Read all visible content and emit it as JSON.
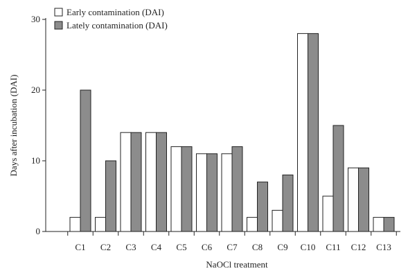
{
  "chart_data": {
    "type": "bar",
    "title": "",
    "xlabel": "NaOCl treatment",
    "ylabel": "Days after incubation (DAI)",
    "ylim": [
      0,
      30
    ],
    "yticks": [
      0,
      10,
      20,
      30
    ],
    "grid": false,
    "legend_position": "top-left",
    "categories": [
      "C1",
      "C2",
      "C3",
      "C4",
      "C5",
      "C6",
      "C7",
      "C8",
      "C9",
      "C10",
      "C11",
      "C12",
      "C13"
    ],
    "series": [
      {
        "name": "Early contamination (DAI)",
        "color": "#ffffff",
        "values": [
          2,
          2,
          14,
          14,
          12,
          11,
          11,
          2,
          3,
          28,
          5,
          9,
          2
        ]
      },
      {
        "name": "Lately contamination (DAI)",
        "color": "#8c8c8c",
        "values": [
          20,
          10,
          14,
          14,
          12,
          11,
          12,
          7,
          8,
          28,
          15,
          9,
          2
        ]
      }
    ]
  }
}
